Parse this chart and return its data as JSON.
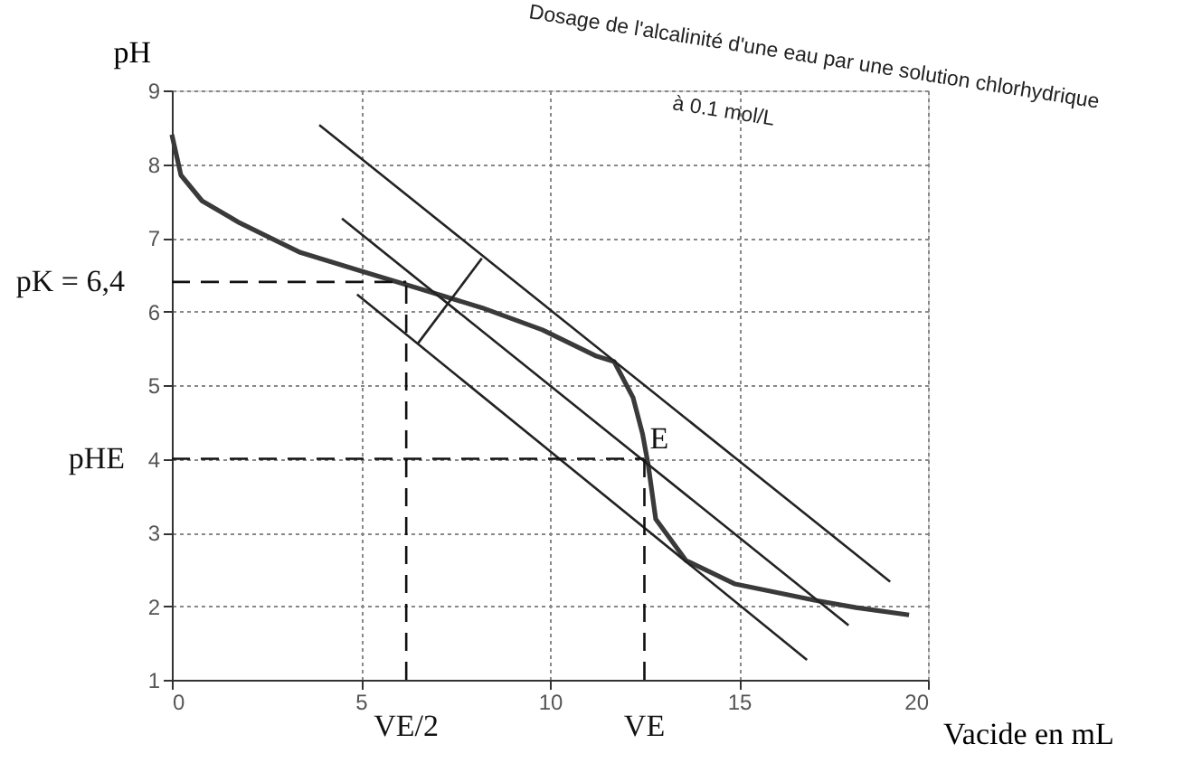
{
  "chart_data": {
    "type": "line",
    "title": "Dosage de l'alcalinité d'une eau par une solution chlorhydrique",
    "subtitle": "à 0.1 mol/L",
    "xlabel": "Vacide en mL",
    "ylabel": "pH",
    "xlim": [
      0,
      20
    ],
    "xticks": [
      0,
      5,
      10,
      15,
      20
    ],
    "ylim": [
      1,
      9
    ],
    "yticks": [
      1,
      2,
      3,
      4,
      5,
      6,
      7,
      8,
      9
    ],
    "grid": true,
    "marker": "none",
    "series": [
      {
        "color": "#3a3a3a",
        "line_style": "solid",
        "x": [
          0,
          0.24,
          0.8,
          1.8,
          3.4,
          5.0,
          6.6,
          8.2,
          9.8,
          11.2,
          11.7,
          12.2,
          12.45,
          12.6,
          12.8,
          13.6,
          14.9,
          17.0,
          18.1,
          19.5
        ],
        "values": [
          8.4,
          7.85,
          7.5,
          7.2,
          6.8,
          6.55,
          6.3,
          6.05,
          5.75,
          5.4,
          5.32,
          4.83,
          4.34,
          3.92,
          3.18,
          2.62,
          2.3,
          2.08,
          1.98,
          1.88
        ]
      },
      {
        "color": "#222222",
        "line_style": "solid",
        "x": [
          3.9,
          19.0
        ],
        "values": [
          8.53,
          2.33
        ]
      },
      {
        "color": "#222222",
        "line_style": "solid",
        "x": [
          4.5,
          17.9
        ],
        "values": [
          7.26,
          1.74
        ]
      },
      {
        "color": "#222222",
        "line_style": "solid",
        "x": [
          4.9,
          16.8
        ],
        "values": [
          6.23,
          1.27
        ]
      },
      {
        "color": "#222222",
        "line_style": "solid",
        "x": [
          8.2,
          6.5
        ],
        "values": [
          6.72,
          5.56
        ]
      },
      {
        "color": "#111111",
        "line_style": "dashed",
        "x": [
          0,
          6.2
        ],
        "values": [
          6.4,
          6.4
        ]
      },
      {
        "color": "#111111",
        "line_style": "dashed",
        "x": [
          6.2,
          6.2
        ],
        "values": [
          1,
          6.4
        ]
      },
      {
        "color": "#111111",
        "line_style": "dashed",
        "x": [
          0,
          12.5
        ],
        "values": [
          4,
          4
        ]
      },
      {
        "color": "#111111",
        "line_style": "dashed",
        "x": [
          12.5,
          12.5
        ],
        "values": [
          1,
          4
        ]
      }
    ],
    "annotations": [
      {
        "text": "pK = 6,4",
        "x": 0,
        "y": 6.4
      },
      {
        "text": "pHE",
        "x": 0,
        "y": 4
      },
      {
        "text": "VE/2",
        "x": 6.2,
        "y": 1
      },
      {
        "text": "VE",
        "x": 12.5,
        "y": 1
      },
      {
        "text": "E",
        "x": 12.5,
        "y": 4
      }
    ]
  }
}
